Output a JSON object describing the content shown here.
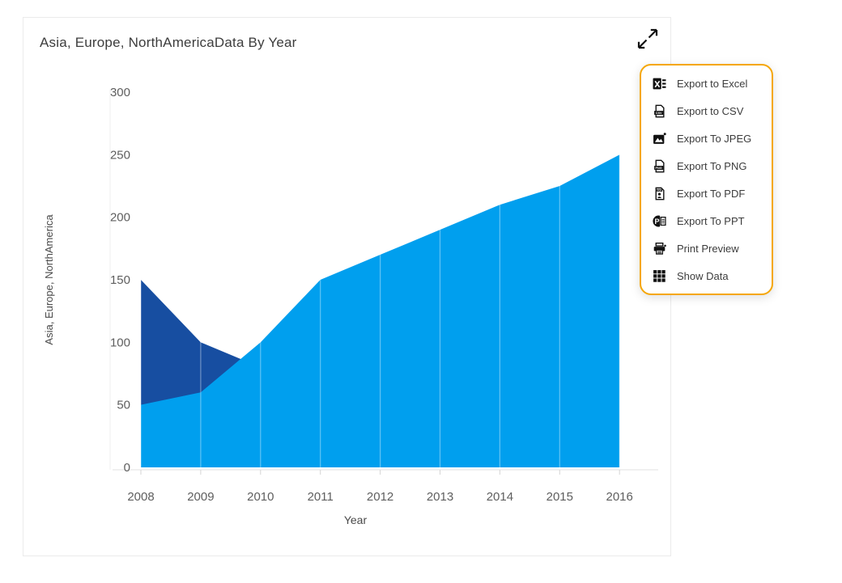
{
  "card": {
    "title": "Asia, Europe, NorthAmericaData By Year"
  },
  "menu": {
    "border_color": "#F5A70A",
    "items": [
      {
        "label": "Export to Excel",
        "icon": "excel"
      },
      {
        "label": "Export to CSV",
        "icon": "csv"
      },
      {
        "label": "Export To JPEG",
        "icon": "jpeg"
      },
      {
        "label": "Export To PNG",
        "icon": "png"
      },
      {
        "label": "Export To PDF",
        "icon": "pdf"
      },
      {
        "label": "Export To PPT",
        "icon": "ppt"
      },
      {
        "label": "Print Preview",
        "icon": "printer"
      },
      {
        "label": "Show Data",
        "icon": "grid"
      }
    ]
  },
  "chart_data": {
    "type": "area",
    "title": "Asia, Europe, NorthAmericaData By Year",
    "xlabel": "Year",
    "ylabel": "Asia, Europe, NorthAmerica",
    "categories": [
      "2008",
      "2009",
      "2010",
      "2011",
      "2012",
      "2013",
      "2014",
      "2015",
      "2016"
    ],
    "yticks": [
      0,
      50,
      100,
      150,
      200,
      250,
      300
    ],
    "ylim": [
      0,
      300
    ],
    "grid": "faint vertical year lines visible over the filled areas only",
    "legend": "none",
    "series": [
      {
        "name": "dark-blue-series",
        "color": "#174EA1",
        "values": [
          150,
          100,
          80,
          null,
          null,
          null,
          null,
          null,
          null
        ],
        "note": "hidden behind the light blue series from ~2010 onward"
      },
      {
        "name": "light-blue-series",
        "color": "#009FEE",
        "values": [
          50,
          60,
          100,
          150,
          170,
          190,
          210,
          225,
          250
        ]
      }
    ]
  }
}
